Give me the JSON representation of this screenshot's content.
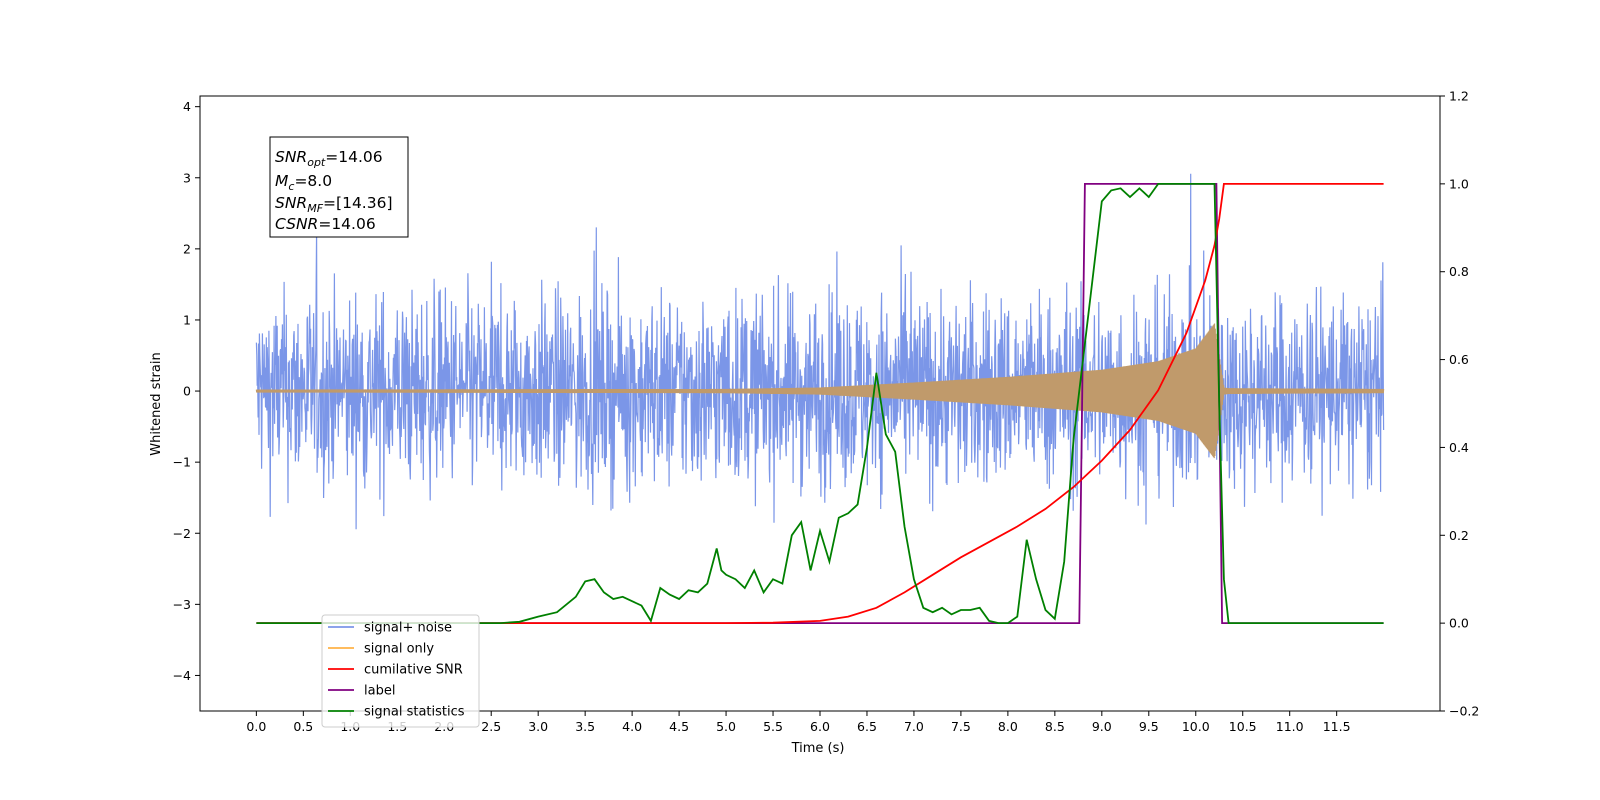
{
  "chart_data": {
    "type": "line",
    "xlabel": "Time (s)",
    "ylabel": "Whitened strain",
    "xlim": [
      -0.6,
      12.6
    ],
    "ylim": [
      -4.5,
      4.15
    ],
    "ylim_right": [
      -0.2,
      1.2
    ],
    "x_ticks": [
      "0.0",
      "0.5",
      "1.0",
      "1.5",
      "2.0",
      "2.5",
      "3.0",
      "3.5",
      "4.0",
      "4.5",
      "5.0",
      "5.5",
      "6.0",
      "6.5",
      "7.0",
      "7.5",
      "8.0",
      "8.5",
      "9.0",
      "9.5",
      "10.0",
      "10.5",
      "11.0",
      "11.5"
    ],
    "y_ticks_left": [
      "4",
      "3",
      "2",
      "1",
      "0",
      "−1",
      "−2",
      "−3",
      "−4"
    ],
    "y_ticks_right": [
      "1.2",
      "1.0",
      "0.8",
      "0.6",
      "0.4",
      "0.2",
      "0.0",
      "−0.2"
    ],
    "grid": false,
    "legend_position": "lower-left",
    "annotation": {
      "snr_opt": {
        "base": "SNR",
        "sub": "opt",
        "value": "=14.06"
      },
      "mc": {
        "base": "M",
        "sub": "c",
        "value": "=8.0"
      },
      "snr_mf": {
        "base": "SNR",
        "sub": "MF",
        "value": "=[14.36]"
      },
      "csnr": {
        "base": "CSNR",
        "value": "=14.06"
      }
    },
    "series": [
      {
        "name": "signal+ noise",
        "axis": "left",
        "color": "#7b96e8",
        "noise_amplitude": 1.1,
        "x_range": [
          0.0,
          12.0
        ]
      },
      {
        "name": "signal only",
        "axis": "left",
        "color": "#ffb347",
        "envelope": {
          "x": [
            0.0,
            5.0,
            6.0,
            7.0,
            8.0,
            9.0,
            9.6,
            10.0,
            10.2,
            10.3,
            10.35,
            12.0
          ],
          "amp": [
            0.02,
            0.03,
            0.05,
            0.12,
            0.2,
            0.3,
            0.42,
            0.6,
            0.95,
            0.05,
            0.04,
            0.03
          ]
        }
      },
      {
        "name": "cumilative SNR",
        "axis": "right",
        "color": "#ff0000",
        "x": [
          0.0,
          5.0,
          5.5,
          6.0,
          6.3,
          6.6,
          6.9,
          7.2,
          7.5,
          7.8,
          8.1,
          8.4,
          8.7,
          9.0,
          9.3,
          9.6,
          9.9,
          10.1,
          10.2,
          10.25,
          10.3,
          12.0
        ],
        "y": [
          0.0,
          0.0,
          0.001,
          0.005,
          0.015,
          0.035,
          0.07,
          0.11,
          0.15,
          0.185,
          0.22,
          0.26,
          0.31,
          0.37,
          0.44,
          0.53,
          0.66,
          0.78,
          0.86,
          0.92,
          1.0,
          1.0
        ]
      },
      {
        "name": "label",
        "axis": "right",
        "color": "#800080",
        "x": [
          0.0,
          8.76,
          8.82,
          10.22,
          10.28,
          12.0
        ],
        "y": [
          0.0,
          0.0,
          1.0,
          1.0,
          0.0,
          0.0
        ]
      },
      {
        "name": "signal statistics",
        "axis": "right",
        "color": "#008000",
        "x": [
          0.0,
          2.6,
          2.8,
          3.0,
          3.2,
          3.4,
          3.5,
          3.6,
          3.7,
          3.8,
          3.9,
          4.0,
          4.1,
          4.2,
          4.3,
          4.4,
          4.5,
          4.6,
          4.7,
          4.8,
          4.9,
          4.95,
          5.0,
          5.1,
          5.2,
          5.3,
          5.4,
          5.5,
          5.6,
          5.7,
          5.8,
          5.9,
          6.0,
          6.1,
          6.2,
          6.3,
          6.4,
          6.5,
          6.6,
          6.7,
          6.8,
          6.9,
          7.0,
          7.1,
          7.2,
          7.3,
          7.4,
          7.5,
          7.6,
          7.7,
          7.8,
          7.9,
          8.0,
          8.1,
          8.2,
          8.3,
          8.4,
          8.5,
          8.6,
          8.7,
          8.8,
          8.9,
          9.0,
          9.1,
          9.2,
          9.3,
          9.4,
          9.5,
          9.6,
          9.7,
          9.8,
          10.0,
          10.2,
          10.25,
          10.3,
          10.35,
          12.0
        ],
        "y": [
          0.0,
          0.0,
          0.003,
          0.015,
          0.025,
          0.06,
          0.095,
          0.1,
          0.07,
          0.055,
          0.06,
          0.05,
          0.04,
          0.005,
          0.08,
          0.065,
          0.055,
          0.075,
          0.07,
          0.09,
          0.17,
          0.12,
          0.11,
          0.1,
          0.08,
          0.12,
          0.07,
          0.1,
          0.09,
          0.2,
          0.23,
          0.12,
          0.21,
          0.14,
          0.24,
          0.25,
          0.27,
          0.4,
          0.57,
          0.43,
          0.39,
          0.22,
          0.1,
          0.035,
          0.025,
          0.035,
          0.02,
          0.03,
          0.03,
          0.035,
          0.005,
          0.0,
          0.0,
          0.015,
          0.19,
          0.1,
          0.03,
          0.01,
          0.14,
          0.42,
          0.6,
          0.78,
          0.96,
          0.985,
          0.99,
          0.97,
          0.99,
          0.97,
          1.0,
          1.0,
          1.0,
          1.0,
          1.0,
          0.5,
          0.1,
          0.0,
          0.0
        ]
      }
    ]
  }
}
